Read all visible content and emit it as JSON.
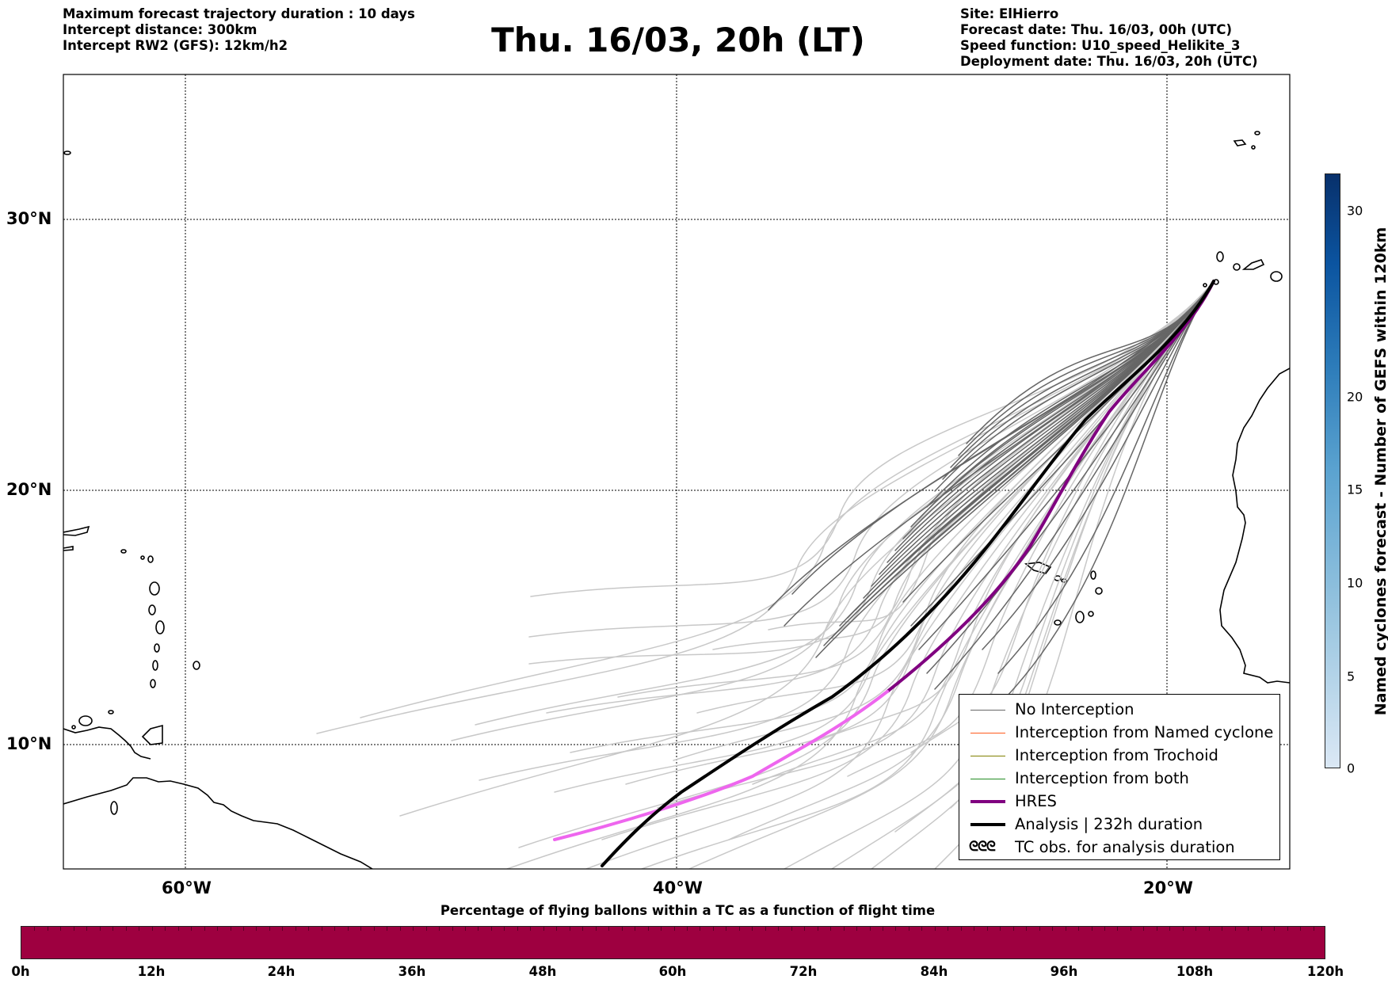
{
  "header": {
    "left_lines": [
      "Maximum forecast trajectory duration : 10 days",
      "Intercept distance: 300km",
      "Intercept RW2 (GFS):  12km/h2"
    ],
    "title": "Thu. 16/03, 20h (LT)",
    "right_lines": [
      "Site: ElHierro",
      "Forecast date: Thu. 16/03, 00h (UTC)",
      "Speed function: U10_speed_Helikite_3",
      "Deployment date: Thu. 16/03, 20h (UTC)"
    ]
  },
  "map": {
    "lat_labels": [
      "30°N",
      "20°N",
      "10°N"
    ],
    "lon_labels": [
      "60°W",
      "40°W",
      "20°W"
    ],
    "colors": {
      "no_interception": "#666666",
      "faded_track": "#c8c8c8",
      "named_cyclone": "#ff5a1e",
      "trochoid": "#808000",
      "both": "#228b22",
      "hres": "#800080",
      "hres_faded": "#ee66ee",
      "analysis": "#000000"
    }
  },
  "legend": {
    "items": [
      {
        "label": "No Interception",
        "style": "no_interception"
      },
      {
        "label": "Interception from Named cyclone",
        "style": "named_cyclone"
      },
      {
        "label": "Interception from Trochoid",
        "style": "trochoid"
      },
      {
        "label": "Interception from both",
        "style": "both"
      },
      {
        "label": "HRES",
        "style": "hres"
      },
      {
        "label": "Analysis | 232h duration",
        "style": "analysis"
      },
      {
        "label": "TC obs. for analysis duration",
        "style": "tc_symbol"
      }
    ],
    "tc_symbol": "ᘓᘓᘓ"
  },
  "bottom_colorbar": {
    "title": "Percentage of flying ballons within a TC as a function of flight time",
    "ticks": [
      "0h",
      "12h",
      "24h",
      "36h",
      "48h",
      "60h",
      "72h",
      "84h",
      "96h",
      "108h",
      "120h"
    ],
    "fill_color": "#9e0040"
  },
  "right_colorbar": {
    "label": "Named cyclones forecast - Number of GEFS within 120km",
    "ticks": [
      "0",
      "5",
      "10",
      "15",
      "20",
      "30"
    ],
    "colors": [
      "#dbe8f5",
      "#9ac6e0",
      "#5ba3d0",
      "#2c7bb9",
      "#0b54a0",
      "#08306b"
    ]
  }
}
